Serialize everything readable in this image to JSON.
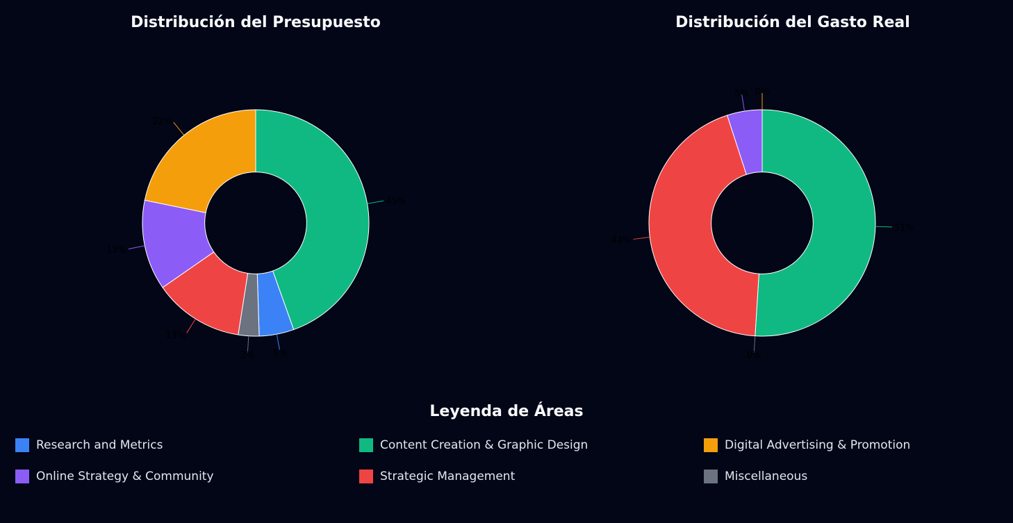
{
  "categories": [
    {
      "name": "Research and Metrics",
      "color": "#3b82f6"
    },
    {
      "name": "Content Creation & Graphic Design",
      "color": "#10b981"
    },
    {
      "name": "Digital Advertising & Promotion",
      "color": "#f59e0b"
    },
    {
      "name": "Online Strategy & Community",
      "color": "#8b5cf6"
    },
    {
      "name": "Strategic Management",
      "color": "#ef4444"
    },
    {
      "name": "Miscellaneous",
      "color": "#6b7280"
    }
  ],
  "legend": {
    "title": "Leyenda de Áreas"
  },
  "chart_data": [
    {
      "type": "pie",
      "hole": 0.45,
      "title": "Distribución del Presupuesto",
      "start_angle_deg": 90,
      "direction": "clockwise",
      "slices": [
        {
          "category": "Content Creation & Graphic Design",
          "value": 45,
          "label": "45%"
        },
        {
          "category": "Research and Metrics",
          "value": 5,
          "label": "5%"
        },
        {
          "category": "Miscellaneous",
          "value": 3,
          "label": "3%"
        },
        {
          "category": "Strategic Management",
          "value": 13,
          "label": "13%"
        },
        {
          "category": "Online Strategy & Community",
          "value": 13,
          "label": "13%"
        },
        {
          "category": "Digital Advertising & Promotion",
          "value": 22,
          "label": "22%"
        }
      ]
    },
    {
      "type": "pie",
      "hole": 0.45,
      "title": "Distribución del Gasto Real",
      "start_angle_deg": 90,
      "direction": "clockwise",
      "slices": [
        {
          "category": "Content Creation & Graphic Design",
          "value": 51,
          "label": "51%"
        },
        {
          "category": "Miscellaneous",
          "value": 0,
          "label": "0%"
        },
        {
          "category": "Strategic Management",
          "value": 44,
          "label": "44%"
        },
        {
          "category": "Online Strategy & Community",
          "value": 5,
          "label": "5%"
        },
        {
          "category": "Digital Advertising & Promotion",
          "value": 0,
          "label": "0%"
        }
      ]
    }
  ]
}
